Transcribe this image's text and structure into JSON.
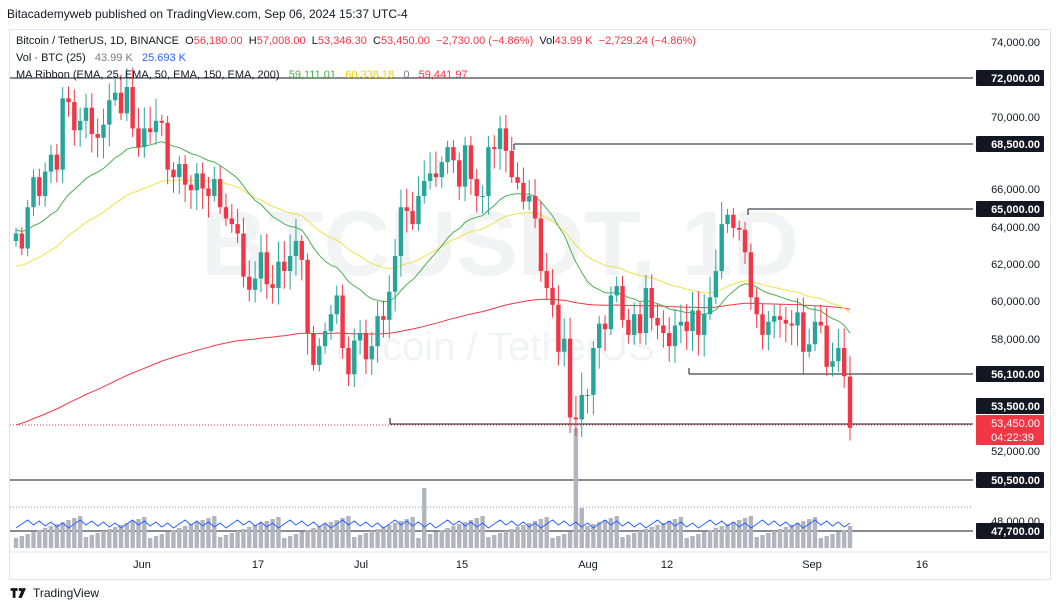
{
  "header": {
    "publisher_line": "Bitacademyweb published on TradingView.com, Sep 06, 2024 15:37 UTC-4"
  },
  "legend": {
    "symbol": "Bitcoin / TetherUS, 1D, BINANCE",
    "o_label": "O",
    "o_value": "56,180.00",
    "h_label": "H",
    "h_value": "57,008.00",
    "l_label": "L",
    "l_value": "53,346.30",
    "c_label": "C",
    "c_value": "53,450.00",
    "change": "−2,730.00 (−4.86%)",
    "vol_label": "Vol",
    "vol_value": "43.99 K",
    "vol_change": "−2,729.24 (−4.86%)",
    "vol_indicator": "Vol · BTC (25)",
    "vol_indicator_v1": "43.99 K",
    "vol_indicator_v2": "25.693 K",
    "ma_indicator": "MA Ribbon (EMA, 25, EMA, 50, EMA, 150, EMA, 200)",
    "ma_v1": "59,111.01",
    "ma_v2": "60,338.18",
    "ma_v3": "0",
    "ma_v4": "59,441.97"
  },
  "watermark": {
    "symbol": "BTCUSDT, 1D",
    "name": "Bitcoin / TetherUS"
  },
  "price_axis": {
    "ticks": [
      "74,000.00",
      "70,000.00",
      "66,000.00",
      "64,000.00",
      "62,000.00",
      "60,000.00",
      "58,000.00",
      "52,000.00",
      "48,000.00"
    ],
    "levels": [
      {
        "label": "72,000.00"
      },
      {
        "label": "68,500.00"
      },
      {
        "label": "65,000.00"
      },
      {
        "label": "56,100.00"
      },
      {
        "label": "53,500.00"
      },
      {
        "label": "50,500.00"
      },
      {
        "label": "47,700.00"
      }
    ],
    "last_price": "53,450.00",
    "countdown": "04:22:39"
  },
  "time_axis": {
    "labels": [
      "Jun",
      "17",
      "Jul",
      "15",
      "Aug",
      "12",
      "Sep",
      "16"
    ]
  },
  "colors": {
    "up": "#26a69a",
    "down": "#f23645",
    "ema25": "#4caf50",
    "ema50": "#f0e04a",
    "ema200": "#f23645",
    "volume": "#b2b5be",
    "volume_ma": "#2962ff"
  },
  "footer": {
    "brand": "TradingView"
  }
}
